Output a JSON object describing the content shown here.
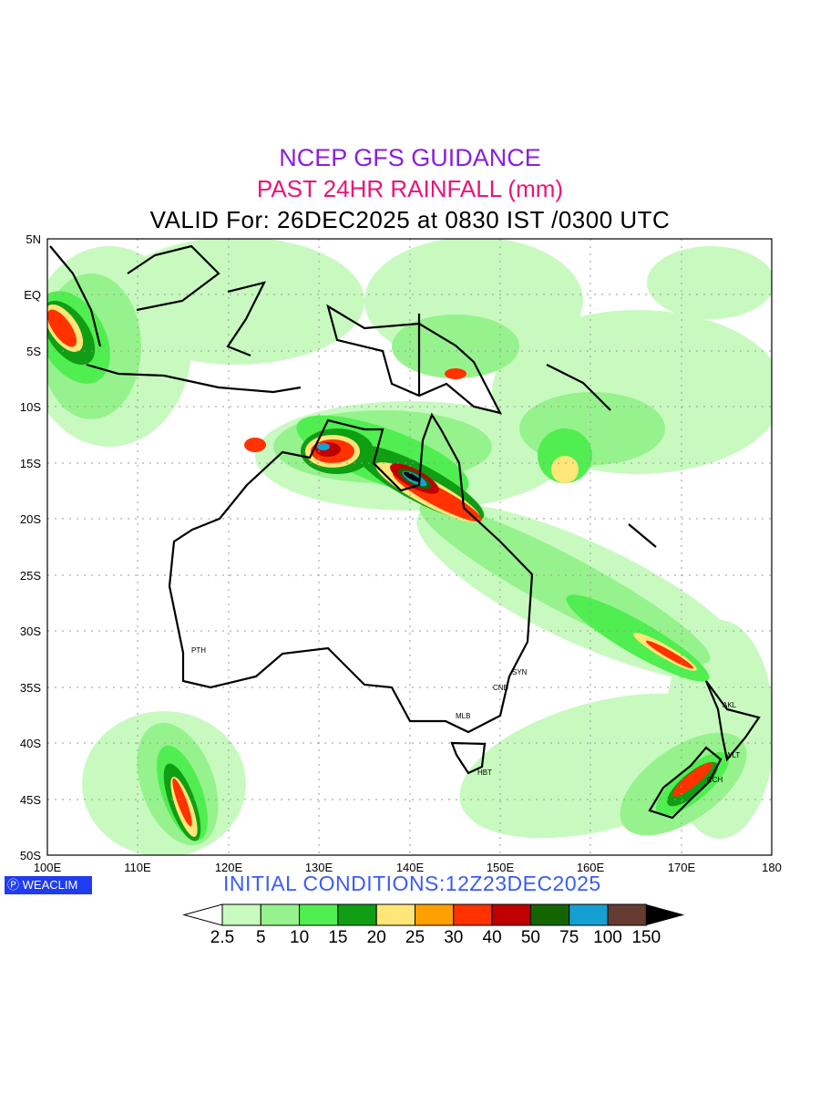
{
  "title": {
    "line1": "NCEP GFS GUIDANCE",
    "line2": "PAST 24HR RAINFALL (mm)",
    "line3": "VALID For: 26DEC2025 at 0830 IST /0300 UTC"
  },
  "axes": {
    "lat_labels": [
      "5N",
      "EQ",
      "5S",
      "10S",
      "15S",
      "20S",
      "25S",
      "30S",
      "35S",
      "40S",
      "45S",
      "50S"
    ],
    "lon_labels": [
      "100E",
      "110E",
      "120E",
      "130E",
      "140E",
      "150E",
      "160E",
      "170E",
      "180"
    ]
  },
  "cities": [
    "PTH",
    "SYN",
    "CNB",
    "MLB",
    "HBT",
    "AKL",
    "WLT",
    "CCH"
  ],
  "logo": {
    "icon": "copyright-icon",
    "text": "WEACLIM"
  },
  "initial_conditions": "INITIAL  CONDITIONS:12Z23DEC2025",
  "legend": {
    "labels": [
      "2.5",
      "5",
      "10",
      "15",
      "20",
      "25",
      "30",
      "40",
      "50",
      "75",
      "100",
      "150"
    ],
    "colors": [
      "#c8fac0",
      "#96f28c",
      "#50ee50",
      "#0f9e14",
      "#ffe678",
      "#ffa000",
      "#ff3200",
      "#c00000",
      "#146400",
      "#14a0d2",
      "#643c32",
      "#000000"
    ]
  }
}
